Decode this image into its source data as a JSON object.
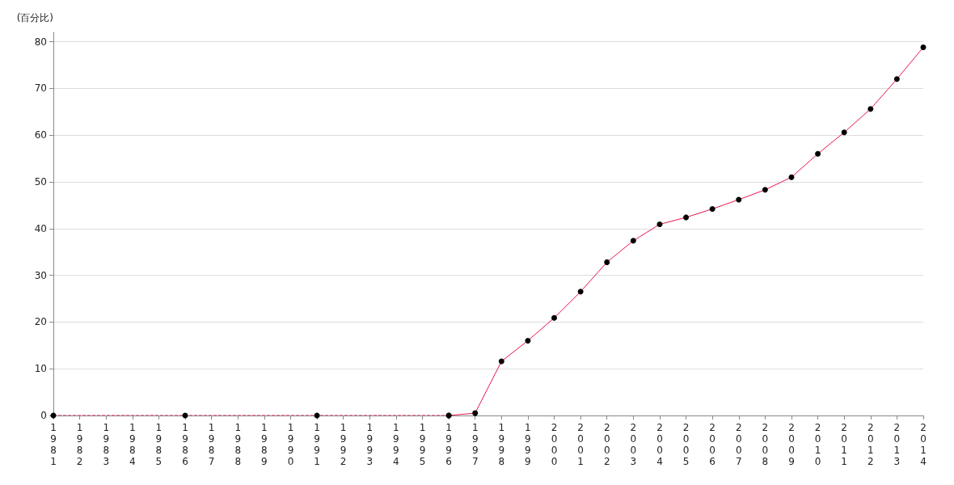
{
  "chart_data": {
    "type": "line",
    "ylabel": "(百分比)",
    "categories": [
      "1981",
      "1982",
      "1983",
      "1984",
      "1985",
      "1986",
      "1987",
      "1988",
      "1989",
      "1990",
      "1991",
      "1992",
      "1993",
      "1994",
      "1995",
      "1996",
      "1997",
      "1998",
      "1999",
      "2000",
      "2001",
      "2002",
      "2003",
      "2004",
      "2005",
      "2006",
      "2007",
      "2008",
      "2009",
      "2010",
      "2011",
      "2012",
      "2013",
      "2014"
    ],
    "series": [
      {
        "color": "#e8174a",
        "line_style": "dashed",
        "values": [
          0,
          null,
          null,
          null,
          null,
          0,
          null,
          null,
          null,
          null,
          0,
          null,
          null,
          null,
          null,
          0,
          null,
          null,
          null,
          null,
          null,
          null,
          null,
          null,
          null,
          null,
          null,
          null,
          null,
          null,
          null,
          null,
          null,
          null
        ]
      },
      {
        "color": "#e8174a",
        "values": [
          null,
          null,
          null,
          null,
          null,
          null,
          null,
          null,
          null,
          null,
          null,
          null,
          null,
          null,
          null,
          0,
          0.5,
          11.6,
          16,
          20.9,
          26.5,
          32.8,
          37.4,
          40.9,
          42.4,
          44.2,
          46.2,
          48.3,
          51,
          56,
          60.6,
          65.6,
          72,
          78.8
        ]
      }
    ],
    "ylim": [
      0,
      82
    ],
    "yticks": [
      0,
      10,
      20,
      30,
      40,
      50,
      60,
      70,
      80
    ],
    "grid": "y",
    "marker": "circle",
    "line_style": "solid"
  }
}
